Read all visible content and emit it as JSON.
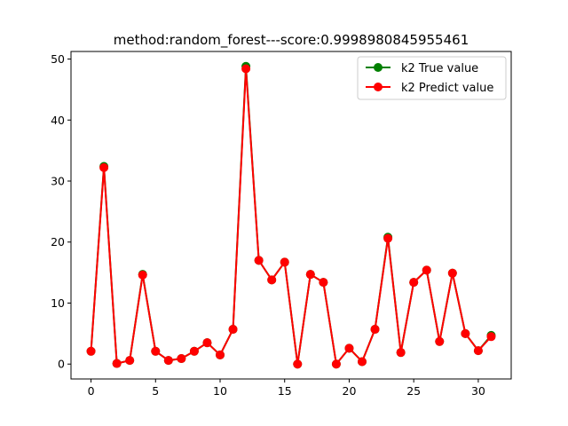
{
  "chart_data": {
    "type": "line",
    "title": "method:random_forest---score:0.9998980845955461",
    "xlabel": "",
    "ylabel": "",
    "xlim": [
      -1.55,
      32.55
    ],
    "ylim": [
      -2.44,
      51.24
    ],
    "x_ticks": [
      0,
      5,
      10,
      15,
      20,
      25,
      30
    ],
    "y_ticks": [
      0,
      10,
      20,
      30,
      40,
      50
    ],
    "grid": false,
    "legend_position": "top-right",
    "x": [
      0,
      1,
      2,
      3,
      4,
      5,
      6,
      7,
      8,
      9,
      10,
      11,
      12,
      13,
      14,
      15,
      16,
      17,
      18,
      19,
      20,
      21,
      22,
      23,
      24,
      25,
      26,
      27,
      28,
      29,
      30,
      31
    ],
    "series": [
      {
        "name": "k2 True value",
        "color": "#008000",
        "marker": "circle",
        "values": [
          2.1,
          32.4,
          0.1,
          0.6,
          14.7,
          2.1,
          0.6,
          0.9,
          2.1,
          3.5,
          1.5,
          5.7,
          48.8,
          17.0,
          13.8,
          16.7,
          0.0,
          14.7,
          13.4,
          0.0,
          2.6,
          0.4,
          5.7,
          20.8,
          1.9,
          13.4,
          15.4,
          3.7,
          14.9,
          5.0,
          2.2,
          4.7
        ]
      },
      {
        "name": "k2 Predict value",
        "color": "#ff0000",
        "marker": "circle",
        "values": [
          2.1,
          32.2,
          0.1,
          0.6,
          14.6,
          2.1,
          0.6,
          0.9,
          2.1,
          3.5,
          1.5,
          5.7,
          48.4,
          17.0,
          13.8,
          16.7,
          0.0,
          14.7,
          13.4,
          0.0,
          2.6,
          0.4,
          5.7,
          20.6,
          1.9,
          13.4,
          15.4,
          3.7,
          14.9,
          5.0,
          2.2,
          4.5
        ]
      }
    ]
  }
}
